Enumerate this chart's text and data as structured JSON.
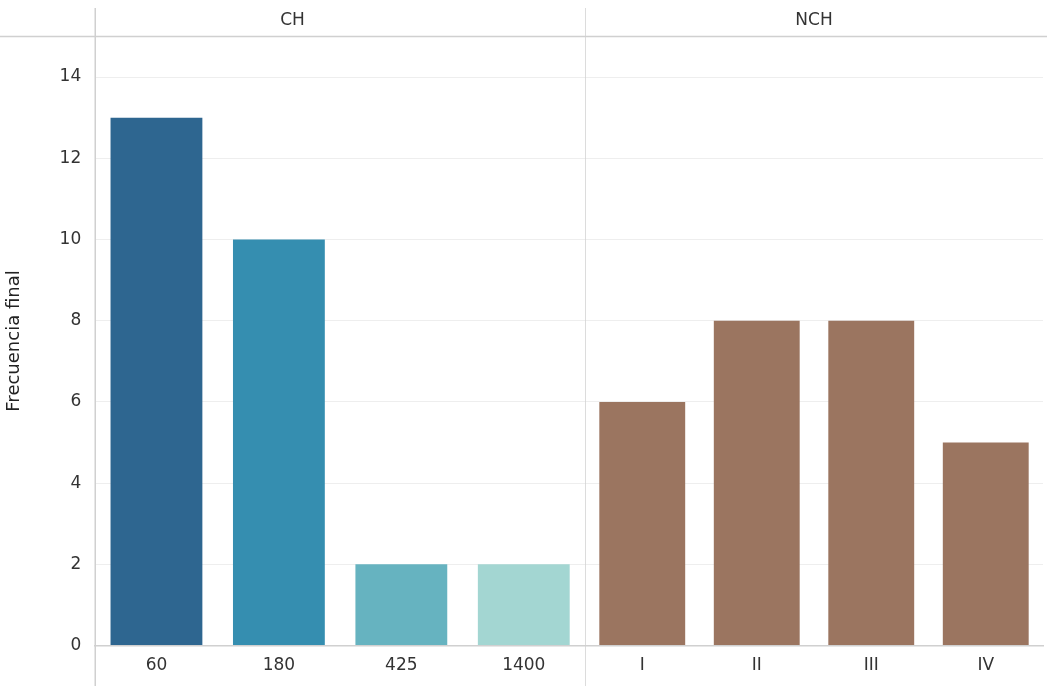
{
  "chart_data": [
    {
      "type": "bar",
      "title": "CH",
      "ylabel": "Frecuencia final",
      "categories": [
        "60",
        "180",
        "425",
        "1400"
      ],
      "values": [
        13,
        10,
        2,
        2
      ],
      "colors": [
        "#2e6690",
        "#358eb0",
        "#66b3c0",
        "#a3d6d2"
      ],
      "ylim": [
        0,
        15
      ],
      "yticks": [
        0,
        2,
        4,
        6,
        8,
        10,
        12,
        14
      ],
      "grid": "y"
    },
    {
      "type": "bar",
      "title": "NCH",
      "categories": [
        "I",
        "II",
        "III",
        "IV"
      ],
      "values": [
        6,
        8,
        8,
        5
      ],
      "colors": [
        "#9b7560",
        "#9b7560",
        "#9b7560",
        "#9b7560"
      ],
      "ylim": [
        0,
        15
      ],
      "yticks": [
        0,
        2,
        4,
        6,
        8,
        10,
        12,
        14
      ],
      "grid": "y",
      "tick_labels": "x"
    }
  ]
}
